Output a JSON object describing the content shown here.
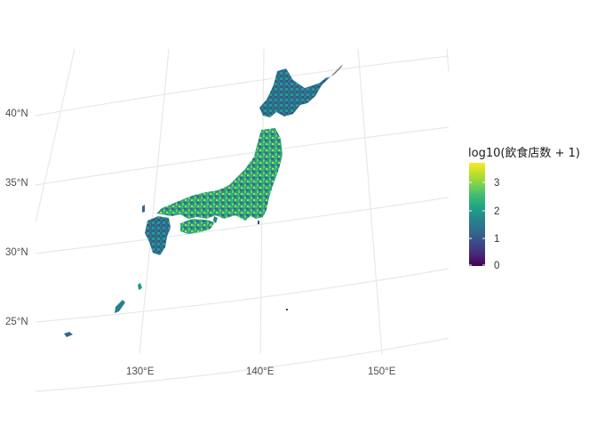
{
  "chart_data": {
    "type": "choropleth-map",
    "title": "",
    "projection": "conic",
    "grid": true,
    "lat_labels": [
      "40°N",
      "35°N",
      "30°N",
      "25°N"
    ],
    "lon_labels": [
      "130°E",
      "140°E",
      "150°E"
    ],
    "legend": {
      "title": "log10(飲食店数 + 1)",
      "position": "right",
      "range": [
        0,
        3.65
      ],
      "ticks": [
        "0",
        "1",
        "2",
        "3"
      ],
      "palette": [
        "#440154",
        "#482878",
        "#3e4989",
        "#31688e",
        "#26828e",
        "#1f9e89",
        "#35b779",
        "#6ece58",
        "#b5de2b",
        "#fde725"
      ]
    }
  }
}
